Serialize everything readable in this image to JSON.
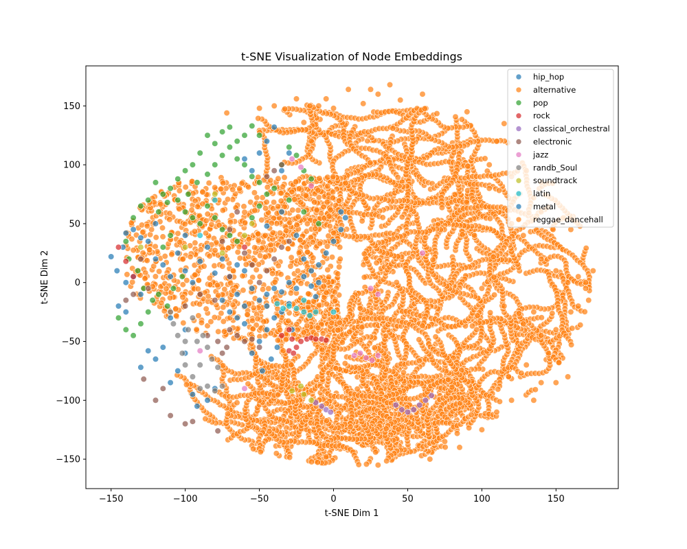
{
  "chart_data": {
    "type": "scatter",
    "title": "t-SNE Visualization of Node Embeddings",
    "xlabel": "t-SNE Dim 1",
    "ylabel": "t-SNE Dim 2",
    "xlim": [
      -167,
      192
    ],
    "ylim": [
      -175,
      184
    ],
    "xticks": [
      -150,
      -100,
      -50,
      0,
      50,
      100,
      150
    ],
    "yticks": [
      -150,
      -100,
      -50,
      0,
      50,
      100,
      150
    ],
    "grid": false,
    "legend_position": "top-right",
    "marker_alpha": 0.7,
    "series": [
      {
        "name": "hip_hop",
        "color": "#1f77b4",
        "points": [
          [
            -150,
            22
          ],
          [
            -146,
            10
          ],
          [
            -142,
            30
          ],
          [
            -140,
            42
          ],
          [
            -135,
            45
          ],
          [
            -130,
            38
          ],
          [
            -125,
            35
          ],
          [
            -120,
            20
          ],
          [
            -115,
            15
          ],
          [
            -110,
            5
          ],
          [
            -105,
            25
          ],
          [
            -100,
            10
          ],
          [
            -95,
            0
          ],
          [
            -90,
            18
          ],
          [
            -85,
            30
          ],
          [
            -80,
            8
          ],
          [
            -75,
            20
          ],
          [
            -70,
            5
          ],
          [
            -65,
            15
          ],
          [
            -60,
            10
          ],
          [
            -55,
            -5
          ],
          [
            -50,
            -15
          ],
          [
            -45,
            -20
          ],
          [
            -40,
            -30
          ],
          [
            -35,
            -25
          ],
          [
            -30,
            -18
          ],
          [
            -45,
            -40
          ],
          [
            -50,
            -50
          ],
          [
            -55,
            -60
          ],
          [
            -48,
            -75
          ],
          [
            -42,
            -65
          ],
          [
            -38,
            -55
          ],
          [
            -60,
            -35
          ],
          [
            -65,
            -30
          ],
          [
            -100,
            -60
          ],
          [
            -105,
            -75
          ],
          [
            -110,
            -85
          ],
          [
            -95,
            -95
          ],
          [
            -92,
            -105
          ],
          [
            -85,
            -100
          ],
          [
            -80,
            -90
          ],
          [
            -115,
            -55
          ],
          [
            -120,
            -65
          ],
          [
            -130,
            -72
          ],
          [
            -125,
            -58
          ],
          [
            -100,
            -40
          ],
          [
            -110,
            -30
          ],
          [
            -130,
            -10
          ],
          [
            -140,
            -25
          ],
          [
            -135,
            5
          ],
          [
            -145,
            -20
          ],
          [
            -140,
            0
          ],
          [
            -40,
            132
          ],
          [
            -45,
            120
          ],
          [
            -50,
            110
          ],
          [
            -60,
            105
          ],
          [
            -35,
            95
          ],
          [
            -30,
            110
          ],
          [
            -55,
            95
          ],
          [
            -28,
            -40
          ],
          [
            -45,
            48
          ],
          [
            -35,
            60
          ],
          [
            -25,
            40
          ],
          [
            -20,
            20
          ],
          [
            -15,
            10
          ],
          [
            -10,
            0
          ],
          [
            -12,
            -12
          ],
          [
            5,
            60
          ],
          [
            -100,
            40
          ],
          [
            -120,
            50
          ]
        ]
      },
      {
        "name": "alternative",
        "color": "#ff7f0e",
        "points": []
      },
      {
        "name": "pop",
        "color": "#2ca02c",
        "points": [
          [
            -85,
            125
          ],
          [
            -80,
            118
          ],
          [
            -75,
            128
          ],
          [
            -70,
            132
          ],
          [
            -65,
            120
          ],
          [
            -60,
            125
          ],
          [
            -55,
            133
          ],
          [
            -50,
            125
          ],
          [
            -90,
            110
          ],
          [
            -95,
            100
          ],
          [
            -100,
            95
          ],
          [
            -105,
            88
          ],
          [
            -110,
            80
          ],
          [
            -115,
            75
          ],
          [
            -120,
            85
          ],
          [
            -125,
            70
          ],
          [
            -118,
            60
          ],
          [
            -112,
            68
          ],
          [
            -105,
            70
          ],
          [
            -98,
            75
          ],
          [
            -92,
            85
          ],
          [
            -85,
            92
          ],
          [
            -80,
            100
          ],
          [
            -75,
            108
          ],
          [
            -70,
            115
          ],
          [
            -65,
            105
          ],
          [
            -60,
            100
          ],
          [
            -55,
            90
          ],
          [
            -50,
            85
          ],
          [
            -45,
            75
          ],
          [
            -40,
            80
          ],
          [
            -35,
            100
          ],
          [
            -30,
            115
          ],
          [
            -25,
            108
          ],
          [
            -20,
            95
          ],
          [
            -15,
            88
          ],
          [
            -100,
            60
          ],
          [
            -95,
            55
          ],
          [
            -90,
            50
          ],
          [
            -85,
            65
          ],
          [
            -80,
            55
          ],
          [
            -75,
            45
          ],
          [
            -70,
            40
          ],
          [
            -65,
            35
          ],
          [
            -130,
            65
          ],
          [
            -135,
            55
          ],
          [
            -140,
            35
          ],
          [
            -138,
            20
          ],
          [
            -132,
            10
          ],
          [
            -128,
            -5
          ],
          [
            -122,
            -15
          ],
          [
            -118,
            -10
          ],
          [
            -112,
            -20
          ],
          [
            -108,
            -5
          ],
          [
            -102,
            5
          ],
          [
            -140,
            -40
          ],
          [
            -145,
            -30
          ],
          [
            -135,
            -45
          ],
          [
            -130,
            -35
          ],
          [
            -125,
            -25
          ],
          [
            -110,
            40
          ],
          [
            -115,
            30
          ],
          [
            -50,
            65
          ],
          [
            -55,
            55
          ],
          [
            -30,
            70
          ],
          [
            -20,
            60
          ],
          [
            -10,
            50
          ]
        ]
      },
      {
        "name": "rock",
        "color": "#d62728",
        "points": [
          [
            -30,
            -40
          ],
          [
            -28,
            -48
          ],
          [
            -25,
            -55
          ],
          [
            -22,
            -50
          ],
          [
            -18,
            -48
          ],
          [
            -15,
            -47
          ],
          [
            -12,
            -48
          ],
          [
            -8,
            -48
          ],
          [
            -5,
            -49
          ],
          [
            -30,
            -58
          ],
          [
            -27,
            -60
          ],
          [
            -35,
            -45
          ],
          [
            -145,
            30
          ],
          [
            -140,
            18
          ],
          [
            -135,
            5
          ],
          [
            -60,
            30
          ]
        ]
      },
      {
        "name": "classical_orchestral",
        "color": "#9467bd",
        "points": [
          [
            -12,
            -102
          ],
          [
            -8,
            -105
          ],
          [
            -5,
            -108
          ],
          [
            -2,
            -110
          ],
          [
            42,
            -104
          ],
          [
            46,
            -108
          ],
          [
            50,
            -110
          ],
          [
            54,
            -108
          ],
          [
            58,
            -104
          ],
          [
            62,
            -100
          ],
          [
            66,
            -96
          ]
        ]
      },
      {
        "name": "electronic",
        "color": "#8c564b",
        "points": [
          [
            -70,
            -40
          ],
          [
            -65,
            -45
          ],
          [
            -60,
            -50
          ],
          [
            -55,
            -48
          ],
          [
            -50,
            -55
          ],
          [
            -72,
            -55
          ],
          [
            -78,
            -50
          ],
          [
            -75,
            -60
          ],
          [
            -85,
            -45
          ],
          [
            -40,
            20
          ],
          [
            -35,
            30
          ],
          [
            -30,
            35
          ],
          [
            -45,
            10
          ],
          [
            -50,
            0
          ],
          [
            -55,
            15
          ],
          [
            -60,
            25
          ],
          [
            -40,
            95
          ],
          [
            -35,
            100
          ],
          [
            -45,
            90
          ],
          [
            -120,
            -100
          ],
          [
            -110,
            -113
          ],
          [
            -100,
            -120
          ],
          [
            -115,
            -90
          ],
          [
            -128,
            -82
          ],
          [
            -95,
            -118
          ],
          [
            -78,
            -126
          ],
          [
            -130,
            20
          ],
          [
            -135,
            -10
          ],
          [
            -125,
            -5
          ],
          [
            -140,
            -15
          ],
          [
            -100,
            -20
          ],
          [
            -90,
            -10
          ],
          [
            -80,
            -15
          ],
          [
            -70,
            5
          ],
          [
            -65,
            60
          ],
          [
            -70,
            45
          ],
          [
            -75,
            35
          ]
        ]
      },
      {
        "name": "jazz",
        "color": "#e377c2",
        "points": [
          [
            14,
            -62
          ],
          [
            18,
            -60
          ],
          [
            22,
            -64
          ],
          [
            26,
            -66
          ],
          [
            30,
            -62
          ],
          [
            -28,
            105
          ],
          [
            -22,
            98
          ],
          [
            -15,
            82
          ],
          [
            -90,
            -58
          ],
          [
            -60,
            -90
          ],
          [
            30,
            -10
          ],
          [
            25,
            -5
          ],
          [
            60,
            25
          ]
        ]
      },
      {
        "name": "randb_Soul",
        "color": "#7f7f7f",
        "points": [
          [
            -95,
            -30
          ],
          [
            -98,
            -40
          ],
          [
            -100,
            -50
          ],
          [
            -102,
            -60
          ],
          [
            -100,
            -70
          ],
          [
            -95,
            -80
          ],
          [
            -90,
            -90
          ],
          [
            -85,
            -88
          ],
          [
            -80,
            -92
          ],
          [
            -75,
            -88
          ],
          [
            -92,
            -50
          ],
          [
            -88,
            -45
          ],
          [
            -85,
            -55
          ],
          [
            -82,
            -65
          ],
          [
            -78,
            -72
          ],
          [
            -90,
            -70
          ],
          [
            -105,
            -45
          ],
          [
            -108,
            -35
          ],
          [
            -110,
            -25
          ]
        ]
      },
      {
        "name": "soundtrack",
        "color": "#bcbd22",
        "points": [
          [
            -20,
            -95
          ],
          [
            -15,
            -100
          ],
          [
            -22,
            -88
          ],
          [
            -28,
            -92
          ],
          [
            -55,
            50
          ],
          [
            -60,
            40
          ],
          [
            -75,
            25
          ],
          [
            -100,
            30
          ],
          [
            -80,
            75
          ],
          [
            -130,
            30
          ]
        ]
      },
      {
        "name": "latin",
        "color": "#17becf",
        "points": [
          [
            -38,
            -18
          ],
          [
            -34,
            -22
          ],
          [
            -30,
            -20
          ],
          [
            -25,
            -22
          ],
          [
            -20,
            -25
          ],
          [
            -16,
            -28
          ],
          [
            -12,
            -25
          ],
          [
            -20,
            -15
          ],
          [
            0,
            -25
          ],
          [
            -80,
            70
          ],
          [
            -90,
            40
          ]
        ]
      },
      {
        "name": "metal",
        "color": "#1f77b4",
        "points": [
          [
            -45,
            -10
          ],
          [
            -40,
            -5
          ],
          [
            -35,
            -8
          ],
          [
            -30,
            0
          ],
          [
            -25,
            -5
          ],
          [
            -20,
            5
          ],
          [
            -15,
            -3
          ],
          [
            -10,
            15
          ],
          [
            -5,
            25
          ],
          [
            0,
            35
          ],
          [
            5,
            45
          ],
          [
            8,
            55
          ],
          [
            -60,
            -20
          ],
          [
            -65,
            -10
          ],
          [
            -70,
            -25
          ],
          [
            -75,
            -15
          ]
        ]
      },
      {
        "name": "reggae_dancehall",
        "color": "#ff7f0e",
        "points": [
          [
            38,
            168
          ],
          [
            -72,
            144
          ],
          [
            10,
            164
          ],
          [
            25,
            164
          ],
          [
            -5,
            156
          ]
        ]
      }
    ]
  }
}
